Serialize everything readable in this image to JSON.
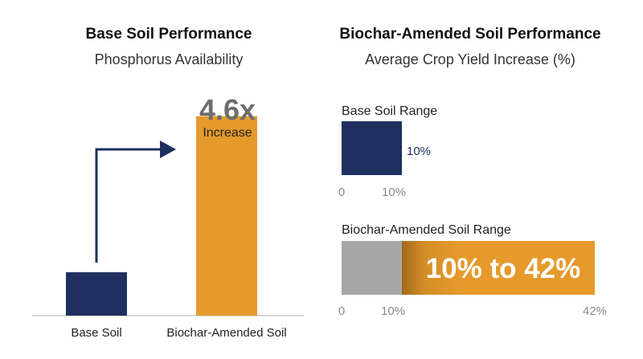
{
  "colors": {
    "navy": "#1f3060",
    "orange": "#e59a2b",
    "gray": "#a7a7a7",
    "axis_gray": "#c8c8c8",
    "tick_gray": "#8a8a8a",
    "multiplier_gray": "#6d6d6d"
  },
  "left_panel": {
    "title": "Base Soil Performance",
    "subtitle": "Phosphorus Availability",
    "multiplier": "4.6x",
    "multiplier_label": "Increase"
  },
  "right_panel": {
    "title": "Biochar-Amended Soil Performance",
    "subtitle": "Average Crop Yield Increase (%)",
    "base_range_label": "Base Soil Range",
    "base_value_label": "10%",
    "base_tick_start": "0",
    "base_tick_end": "10%",
    "amended_range_label": "Biochar-Amended Soil Range",
    "amended_value_label": "10% to 42%",
    "amended_tick_start": "0",
    "amended_tick_mid": "10%",
    "amended_tick_end": "42%"
  },
  "chart_data": [
    {
      "type": "bar",
      "title": "Base Soil Performance",
      "subtitle": "Phosphorus Availability",
      "categories": [
        "Base Soil",
        "Biochar-Amended Soil"
      ],
      "values": [
        1,
        4.6
      ],
      "annotation": "4.6x Increase"
    },
    {
      "type": "bar",
      "orientation": "horizontal",
      "title": "Biochar-Amended Soil Performance",
      "subtitle": "Average Crop Yield Increase (%)",
      "xlim": [
        0,
        42
      ],
      "series": [
        {
          "name": "Base Soil Range",
          "range": [
            0,
            10
          ]
        },
        {
          "name": "Biochar-Amended Soil Range",
          "range": [
            10,
            42
          ]
        }
      ]
    }
  ]
}
